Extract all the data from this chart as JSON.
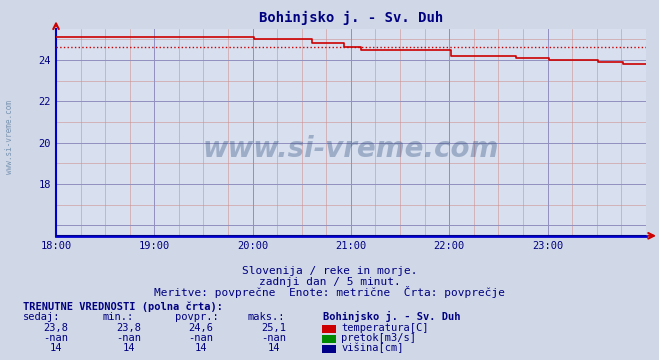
{
  "title": "Bohinjsko j. - Sv. Duh",
  "title_color": "#000080",
  "bg_color": "#d0d8e8",
  "plot_bg_color": "#d8e0f0",
  "xlabel": "",
  "ylabel": "",
  "xmin": 0,
  "xmax": 360,
  "ymin": 15.5,
  "ymax": 25.5,
  "ytick_positions": [
    16,
    18,
    20,
    22,
    24
  ],
  "ytick_labels": [
    "",
    "18",
    "20",
    "22",
    "24"
  ],
  "xtick_positions": [
    0,
    60,
    120,
    180,
    240,
    300
  ],
  "xtick_labels": [
    "18:00",
    "19:00",
    "20:00",
    "21:00",
    "22:00",
    "23:00"
  ],
  "temp_color": "#cc0000",
  "avg_value": 24.6,
  "watermark_text": "www.si-vreme.com",
  "watermark_color": "#1a3a6b",
  "watermark_alpha": 0.3,
  "subtitle1": "Slovenija / reke in morje.",
  "subtitle2": "zadnji dan / 5 minut.",
  "subtitle3": "Meritve: povprečne  Enote: metrične  Črta: povprečje",
  "table_header": "TRENUTNE VREDNOSTI (polna črta):",
  "col_headers": [
    "sedaj:",
    "min.:",
    "povpr.:",
    "maks.:",
    "Bohinjsko j. - Sv. Duh"
  ],
  "row1": [
    "23,8",
    "23,8",
    "24,6",
    "25,1",
    "temperatura[C]"
  ],
  "row2": [
    "-nan",
    "-nan",
    "-nan",
    "-nan",
    "pretok[m3/s]"
  ],
  "row3": [
    "14",
    "14",
    "14",
    "14",
    "višina[cm]"
  ],
  "legend_colors": [
    "#cc0000",
    "#008800",
    "#000088"
  ],
  "temp_data_x": [
    0,
    120,
    121,
    155,
    156,
    175,
    176,
    185,
    186,
    240,
    241,
    280,
    281,
    300,
    301,
    330,
    331,
    345,
    346,
    360
  ],
  "temp_data_y": [
    25.1,
    25.1,
    25.0,
    25.0,
    24.8,
    24.8,
    24.6,
    24.6,
    24.5,
    24.5,
    24.2,
    24.2,
    24.1,
    24.1,
    24.0,
    24.0,
    23.9,
    23.9,
    23.8,
    23.8
  ],
  "side_label": "www.si-vreme.com"
}
